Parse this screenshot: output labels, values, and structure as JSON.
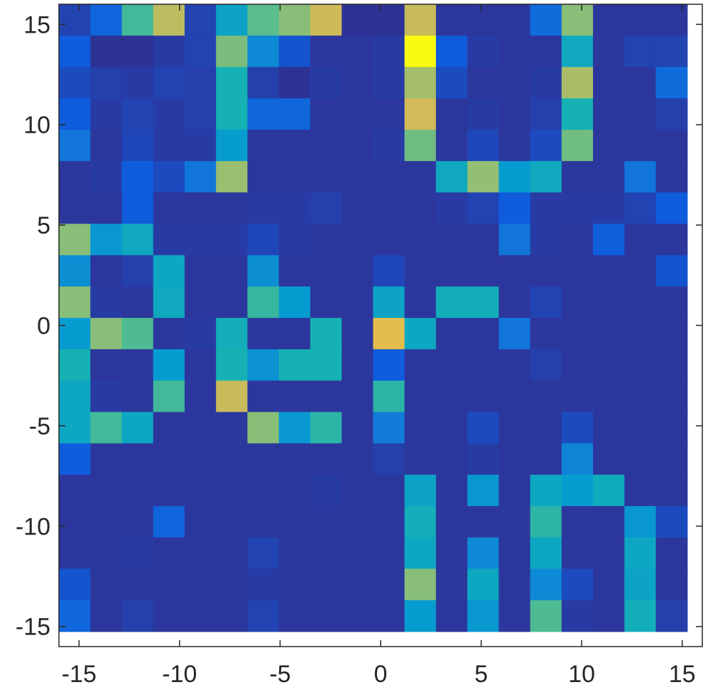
{
  "chart_data": {
    "type": "heatmap",
    "title": "",
    "xlabel": "",
    "ylabel": "",
    "colormap": "parula",
    "grid": false,
    "legend": "none",
    "xlim": [
      -16,
      16
    ],
    "ylim": [
      -16,
      16
    ],
    "cell_size": 1.5625,
    "x_ticks": [
      -15,
      -10,
      -5,
      0,
      5,
      10,
      15
    ],
    "y_ticks": [
      15,
      10,
      5,
      0,
      -5,
      -10,
      -15
    ],
    "x_tick_labels": [
      "-15",
      "-10",
      "-5",
      "0",
      "5",
      "10",
      "15"
    ],
    "y_tick_labels": [
      "15",
      "10",
      "5",
      "0",
      "-5",
      "-10",
      "-15"
    ],
    "value_range": [
      0,
      1
    ],
    "row_order": "top-to-bottom",
    "values": [
      [
        0.06,
        0.15,
        0.58,
        0.8,
        0.06,
        0.42,
        0.62,
        0.7,
        0.83,
        0.02,
        0.02,
        0.82,
        0.03,
        0.03,
        0.03,
        0.18,
        0.7,
        0.03,
        0.03,
        0.03
      ],
      [
        0.12,
        0.02,
        0.02,
        0.04,
        0.06,
        0.68,
        0.3,
        0.1,
        0.03,
        0.03,
        0.04,
        1.0,
        0.12,
        0.04,
        0.03,
        0.03,
        0.45,
        0.03,
        0.06,
        0.06
      ],
      [
        0.08,
        0.05,
        0.04,
        0.06,
        0.05,
        0.5,
        0.05,
        0.02,
        0.04,
        0.03,
        0.04,
        0.75,
        0.08,
        0.03,
        0.03,
        0.04,
        0.76,
        0.03,
        0.03,
        0.18
      ],
      [
        0.12,
        0.04,
        0.06,
        0.04,
        0.05,
        0.5,
        0.16,
        0.16,
        0.03,
        0.03,
        0.03,
        0.84,
        0.03,
        0.04,
        0.03,
        0.05,
        0.5,
        0.03,
        0.03,
        0.05
      ],
      [
        0.22,
        0.03,
        0.07,
        0.04,
        0.04,
        0.38,
        0.03,
        0.03,
        0.03,
        0.03,
        0.04,
        0.66,
        0.03,
        0.07,
        0.03,
        0.08,
        0.66,
        0.03,
        0.03,
        0.03
      ],
      [
        0.03,
        0.04,
        0.12,
        0.08,
        0.22,
        0.73,
        0.03,
        0.03,
        0.03,
        0.03,
        0.03,
        0.03,
        0.45,
        0.72,
        0.38,
        0.45,
        0.03,
        0.03,
        0.22,
        0.03
      ],
      [
        0.03,
        0.03,
        0.12,
        0.03,
        0.03,
        0.03,
        0.04,
        0.04,
        0.05,
        0.03,
        0.03,
        0.03,
        0.04,
        0.06,
        0.12,
        0.04,
        0.04,
        0.04,
        0.06,
        0.12
      ],
      [
        0.7,
        0.36,
        0.45,
        0.04,
        0.04,
        0.04,
        0.07,
        0.04,
        0.03,
        0.03,
        0.03,
        0.03,
        0.03,
        0.03,
        0.22,
        0.04,
        0.03,
        0.13,
        0.03,
        0.03
      ],
      [
        0.32,
        0.03,
        0.05,
        0.44,
        0.03,
        0.03,
        0.32,
        0.03,
        0.03,
        0.03,
        0.07,
        0.03,
        0.03,
        0.03,
        0.03,
        0.03,
        0.03,
        0.03,
        0.03,
        0.1
      ],
      [
        0.7,
        0.04,
        0.03,
        0.45,
        0.03,
        0.03,
        0.56,
        0.38,
        0.03,
        0.03,
        0.42,
        0.03,
        0.48,
        0.48,
        0.03,
        0.06,
        0.03,
        0.03,
        0.03,
        0.03
      ],
      [
        0.38,
        0.7,
        0.6,
        0.03,
        0.04,
        0.48,
        0.03,
        0.03,
        0.5,
        0.03,
        0.88,
        0.44,
        0.03,
        0.03,
        0.22,
        0.03,
        0.03,
        0.03,
        0.03,
        0.03
      ],
      [
        0.5,
        0.03,
        0.03,
        0.38,
        0.03,
        0.5,
        0.34,
        0.5,
        0.5,
        0.03,
        0.12,
        0.03,
        0.03,
        0.03,
        0.03,
        0.05,
        0.03,
        0.03,
        0.03,
        0.03
      ],
      [
        0.44,
        0.04,
        0.03,
        0.58,
        0.03,
        0.82,
        0.03,
        0.03,
        0.03,
        0.03,
        0.54,
        0.03,
        0.03,
        0.03,
        0.03,
        0.03,
        0.03,
        0.03,
        0.03,
        0.03
      ],
      [
        0.44,
        0.58,
        0.44,
        0.03,
        0.03,
        0.03,
        0.7,
        0.36,
        0.54,
        0.03,
        0.24,
        0.03,
        0.03,
        0.08,
        0.03,
        0.03,
        0.08,
        0.03,
        0.03,
        0.03
      ],
      [
        0.12,
        0.03,
        0.03,
        0.03,
        0.03,
        0.03,
        0.03,
        0.03,
        0.03,
        0.03,
        0.05,
        0.03,
        0.03,
        0.04,
        0.03,
        0.03,
        0.28,
        0.03,
        0.03,
        0.03
      ],
      [
        0.03,
        0.03,
        0.03,
        0.03,
        0.03,
        0.03,
        0.03,
        0.03,
        0.04,
        0.03,
        0.03,
        0.42,
        0.03,
        0.36,
        0.03,
        0.44,
        0.38,
        0.46,
        0.03,
        0.03
      ],
      [
        0.03,
        0.03,
        0.03,
        0.15,
        0.03,
        0.03,
        0.03,
        0.03,
        0.03,
        0.03,
        0.03,
        0.48,
        0.03,
        0.03,
        0.03,
        0.54,
        0.03,
        0.03,
        0.36,
        0.08
      ],
      [
        0.03,
        0.03,
        0.04,
        0.03,
        0.03,
        0.03,
        0.06,
        0.03,
        0.03,
        0.03,
        0.03,
        0.44,
        0.03,
        0.3,
        0.03,
        0.44,
        0.03,
        0.03,
        0.44,
        0.03
      ],
      [
        0.1,
        0.03,
        0.03,
        0.03,
        0.03,
        0.03,
        0.04,
        0.03,
        0.03,
        0.03,
        0.03,
        0.7,
        0.03,
        0.44,
        0.03,
        0.3,
        0.08,
        0.03,
        0.42,
        0.03
      ],
      [
        0.16,
        0.03,
        0.05,
        0.03,
        0.03,
        0.03,
        0.06,
        0.03,
        0.03,
        0.03,
        0.03,
        0.38,
        0.03,
        0.36,
        0.03,
        0.6,
        0.04,
        0.03,
        0.48,
        0.05
      ]
    ]
  }
}
